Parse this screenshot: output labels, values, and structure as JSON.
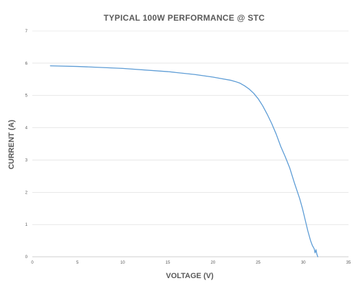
{
  "chart_data": {
    "type": "line",
    "title": "TYPICAL 100W PERFORMANCE @ STC",
    "xlabel": "VOLTAGE (V)",
    "ylabel": "CURRENT (A)",
    "xlim": [
      0,
      35
    ],
    "ylim": [
      0,
      7
    ],
    "xticks": [
      0,
      5,
      10,
      15,
      20,
      25,
      30,
      35
    ],
    "yticks": [
      0,
      1,
      2,
      3,
      4,
      5,
      6,
      7
    ],
    "grid": "horizontal",
    "legend": "none",
    "line_color": "#5b9bd5",
    "series": [
      {
        "x": [
          2,
          5,
          10,
          15,
          18,
          20,
          21,
          22,
          22.5,
          23,
          23.5,
          24,
          24.5,
          25,
          25.5,
          26,
          26.5,
          27,
          27.5,
          28,
          28.5,
          29,
          29.3,
          29.6,
          29.9,
          30.2,
          30.5,
          30.8,
          31,
          31.2,
          31.3,
          31.4,
          31.5,
          31.6
        ],
        "y": [
          5.92,
          5.9,
          5.84,
          5.74,
          5.65,
          5.57,
          5.52,
          5.47,
          5.43,
          5.38,
          5.3,
          5.2,
          5.07,
          4.9,
          4.68,
          4.42,
          4.13,
          3.8,
          3.42,
          3.1,
          2.75,
          2.3,
          2.05,
          1.8,
          1.5,
          1.15,
          0.8,
          0.5,
          0.35,
          0.25,
          0.12,
          0.22,
          0.08,
          0.0
        ]
      }
    ]
  }
}
